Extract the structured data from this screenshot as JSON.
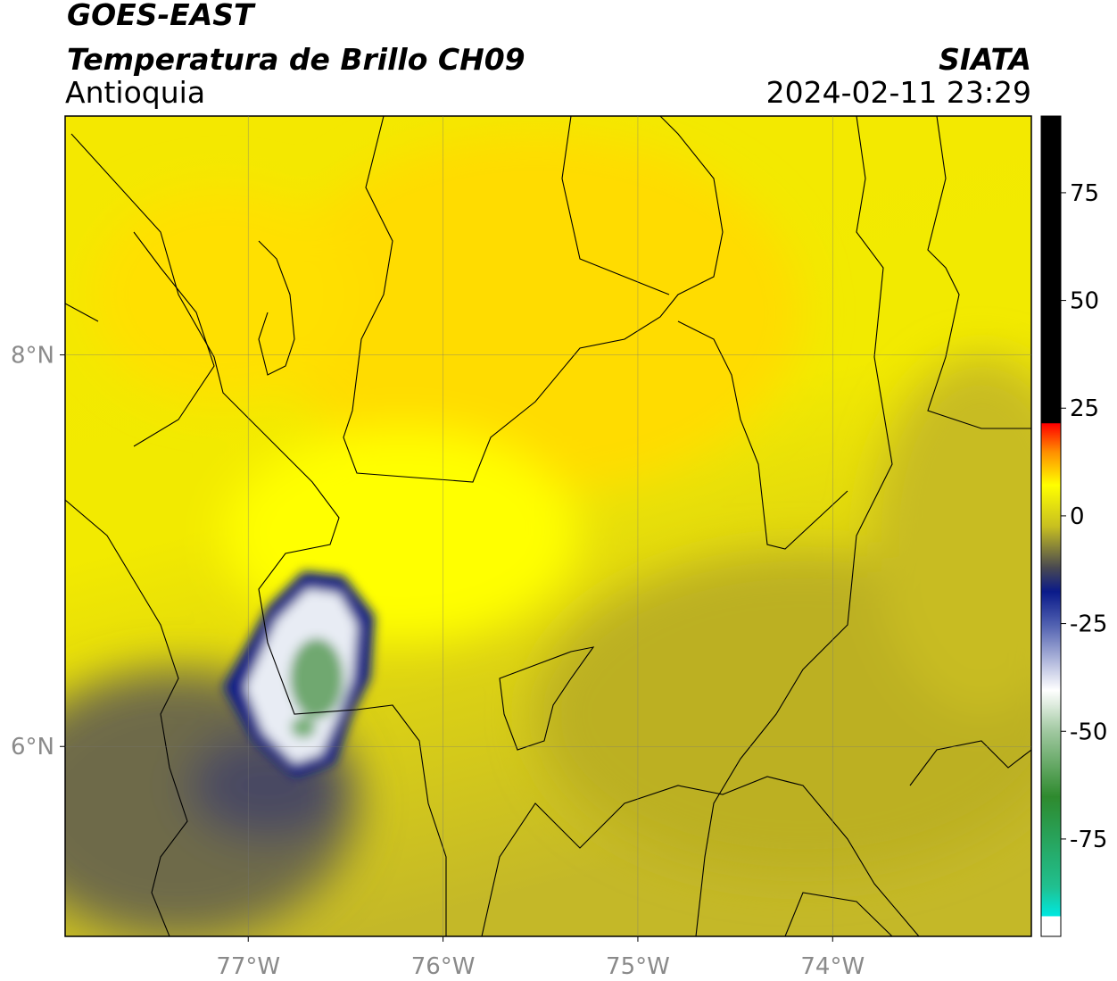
{
  "header": {
    "title": "GOES-EAST",
    "subtitle": "Temperatura de Brillo CH09",
    "region": "Antioquia",
    "source": "SIATA",
    "timestamp": "2024-02-11 23:29"
  },
  "map": {
    "xlim": [
      -77.94,
      -72.98
    ],
    "ylim": [
      5.03,
      9.22
    ],
    "xticks": [
      {
        "value": -77,
        "label": "77°W"
      },
      {
        "value": -76,
        "label": "76°W"
      },
      {
        "value": -75,
        "label": "75°W"
      },
      {
        "value": -74,
        "label": "74°W"
      }
    ],
    "yticks": [
      {
        "value": 6,
        "label": "6°N"
      },
      {
        "value": 8,
        "label": "8°N"
      }
    ],
    "grid": true
  },
  "colorbar": {
    "lim": [
      -97.6,
      92.8
    ],
    "ticks": [
      -75,
      -50,
      -25,
      0,
      25,
      50,
      75
    ]
  }
}
